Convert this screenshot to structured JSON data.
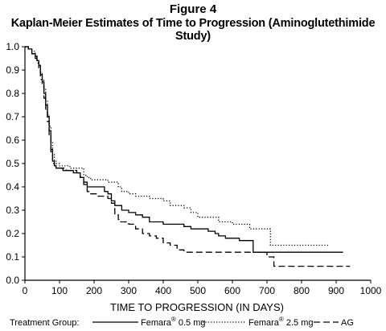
{
  "figure_label": "Figure 4",
  "chart_data": {
    "type": "line",
    "title": "Kaplan-Meier Estimates of Time to Progression (Aminoglutethimide Study)",
    "xlabel": "TIME TO PROGRESSION (IN DAYS)",
    "ylabel": "",
    "xlim": [
      0,
      1000
    ],
    "ylim": [
      0,
      1.0
    ],
    "x_ticks": [
      "0",
      "100",
      "200",
      "300",
      "400",
      "500",
      "600",
      "700",
      "800",
      "900",
      "1000"
    ],
    "y_ticks": [
      "0.0",
      "0.1",
      "0.2",
      "0.3",
      "0.4",
      "0.5",
      "0.6",
      "0.7",
      "0.8",
      "0.9",
      "1.0"
    ],
    "grid": false,
    "legend_position": "bottom",
    "legend_title": "Treatment Group:",
    "series": [
      {
        "name": "Femara® 0.5 mg",
        "label_main": "Femara",
        "label_sup": "®",
        "label_rest": "0.5 mg",
        "style": "solid",
        "color": "#000000",
        "x": [
          0,
          10,
          20,
          30,
          35,
          40,
          45,
          50,
          55,
          60,
          65,
          70,
          75,
          80,
          85,
          90,
          95,
          100,
          110,
          120,
          140,
          160,
          170,
          180,
          190,
          230,
          240,
          250,
          260,
          275,
          280,
          300,
          320,
          340,
          360,
          400,
          460,
          480,
          500,
          530,
          550,
          560,
          580,
          600,
          620,
          640,
          660,
          700,
          720,
          760,
          800,
          900,
          920
        ],
        "y": [
          1.0,
          0.99,
          0.97,
          0.96,
          0.94,
          0.92,
          0.88,
          0.85,
          0.8,
          0.75,
          0.7,
          0.64,
          0.56,
          0.51,
          0.49,
          0.48,
          0.48,
          0.48,
          0.47,
          0.47,
          0.46,
          0.44,
          0.42,
          0.4,
          0.4,
          0.38,
          0.37,
          0.34,
          0.32,
          0.32,
          0.3,
          0.29,
          0.28,
          0.27,
          0.25,
          0.24,
          0.23,
          0.22,
          0.22,
          0.21,
          0.2,
          0.19,
          0.18,
          0.18,
          0.17,
          0.17,
          0.12,
          0.12,
          0.12,
          0.12,
          0.12,
          0.12,
          0.12
        ]
      },
      {
        "name": "Femara® 2.5 mg",
        "label_main": "Femara",
        "label_sup": "®",
        "label_rest": "2.5 mg",
        "style": "dotted",
        "color": "#000000",
        "x": [
          0,
          10,
          20,
          30,
          35,
          40,
          45,
          50,
          55,
          60,
          65,
          70,
          75,
          80,
          85,
          90,
          95,
          100,
          110,
          130,
          150,
          170,
          180,
          190,
          200,
          210,
          240,
          270,
          280,
          300,
          320,
          360,
          400,
          420,
          460,
          480,
          500,
          560,
          600,
          620,
          650,
          700,
          710,
          720,
          760,
          800,
          880
        ],
        "y": [
          1.0,
          0.99,
          0.98,
          0.96,
          0.94,
          0.92,
          0.89,
          0.86,
          0.82,
          0.77,
          0.71,
          0.66,
          0.59,
          0.54,
          0.51,
          0.5,
          0.5,
          0.49,
          0.49,
          0.48,
          0.48,
          0.45,
          0.44,
          0.43,
          0.43,
          0.43,
          0.42,
          0.4,
          0.38,
          0.37,
          0.36,
          0.35,
          0.34,
          0.32,
          0.31,
          0.29,
          0.27,
          0.25,
          0.24,
          0.24,
          0.22,
          0.22,
          0.15,
          0.15,
          0.15,
          0.15,
          0.15
        ]
      },
      {
        "name": "AG",
        "label_main": "AG",
        "label_sup": "",
        "label_rest": "",
        "style": "dashed",
        "color": "#000000",
        "x": [
          0,
          10,
          20,
          30,
          35,
          40,
          45,
          50,
          55,
          60,
          65,
          70,
          75,
          80,
          85,
          90,
          95,
          100,
          120,
          150,
          160,
          170,
          180,
          190,
          200,
          210,
          240,
          250,
          260,
          270,
          275,
          280,
          300,
          320,
          340,
          360,
          380,
          400,
          420,
          440,
          460,
          480,
          520,
          560,
          600,
          640,
          700,
          720,
          760,
          800,
          880,
          940
        ],
        "y": [
          1.0,
          0.99,
          0.97,
          0.95,
          0.93,
          0.9,
          0.86,
          0.83,
          0.78,
          0.73,
          0.68,
          0.62,
          0.55,
          0.5,
          0.49,
          0.48,
          0.48,
          0.48,
          0.47,
          0.46,
          0.44,
          0.41,
          0.38,
          0.37,
          0.37,
          0.36,
          0.35,
          0.33,
          0.28,
          0.26,
          0.25,
          0.25,
          0.24,
          0.22,
          0.2,
          0.19,
          0.18,
          0.16,
          0.15,
          0.13,
          0.12,
          0.12,
          0.12,
          0.12,
          0.12,
          0.12,
          0.1,
          0.06,
          0.06,
          0.06,
          0.06,
          0.06
        ]
      }
    ]
  }
}
